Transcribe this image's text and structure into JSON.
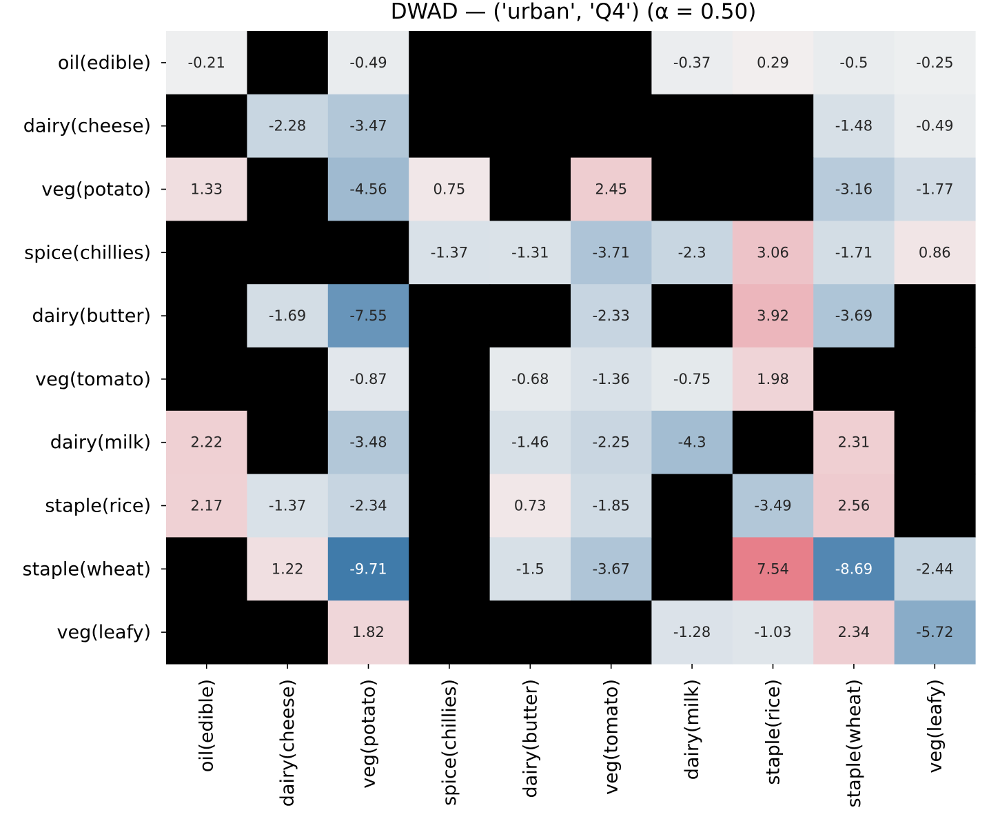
{
  "chart_data": {
    "type": "heatmap",
    "title": "DWAD — ('urban', 'Q4')   (α = 0.50)",
    "xlabel": "",
    "ylabel": "",
    "rows": [
      "oil(edible)",
      "dairy(cheese)",
      "veg(potato)",
      "spice(chillies)",
      "dairy(butter)",
      "veg(tomato)",
      "dairy(milk)",
      "staple(rice)",
      "staple(wheat)",
      "veg(leafy)"
    ],
    "columns": [
      "oil(edible)",
      "dairy(cheese)",
      "veg(potato)",
      "spice(chillies)",
      "dairy(butter)",
      "veg(tomato)",
      "dairy(milk)",
      "staple(rice)",
      "staple(wheat)",
      "veg(leafy)"
    ],
    "values": [
      [
        -0.21,
        null,
        -0.49,
        null,
        null,
        null,
        -0.37,
        0.29,
        -0.5,
        -0.25
      ],
      [
        null,
        -2.28,
        -3.47,
        null,
        null,
        null,
        null,
        null,
        -1.48,
        -0.49
      ],
      [
        1.33,
        null,
        -4.56,
        0.75,
        null,
        2.45,
        null,
        null,
        -3.16,
        -1.77
      ],
      [
        null,
        null,
        null,
        -1.37,
        -1.31,
        -3.71,
        -2.3,
        3.06,
        -1.71,
        0.86
      ],
      [
        null,
        -1.69,
        -7.55,
        null,
        null,
        -2.33,
        null,
        3.92,
        -3.69,
        null
      ],
      [
        null,
        null,
        -0.87,
        null,
        -0.68,
        -1.36,
        -0.75,
        1.98,
        null,
        null
      ],
      [
        2.22,
        null,
        -3.48,
        null,
        -1.46,
        -2.25,
        -4.3,
        null,
        2.31,
        null
      ],
      [
        2.17,
        -1.37,
        -2.34,
        null,
        0.73,
        -1.85,
        null,
        -3.49,
        2.56,
        null
      ],
      [
        null,
        1.22,
        -9.71,
        null,
        -1.5,
        -3.67,
        null,
        7.54,
        -8.69,
        -2.44
      ],
      [
        null,
        null,
        1.82,
        null,
        null,
        null,
        -1.28,
        -1.03,
        2.34,
        -5.72
      ]
    ],
    "missing_color": "#000000",
    "colormap": {
      "negative": "#3b77a8",
      "center": "#f2f2f2",
      "positive": "#e35a68",
      "vmin": -10,
      "vmax": 10
    },
    "colorbar": false
  }
}
